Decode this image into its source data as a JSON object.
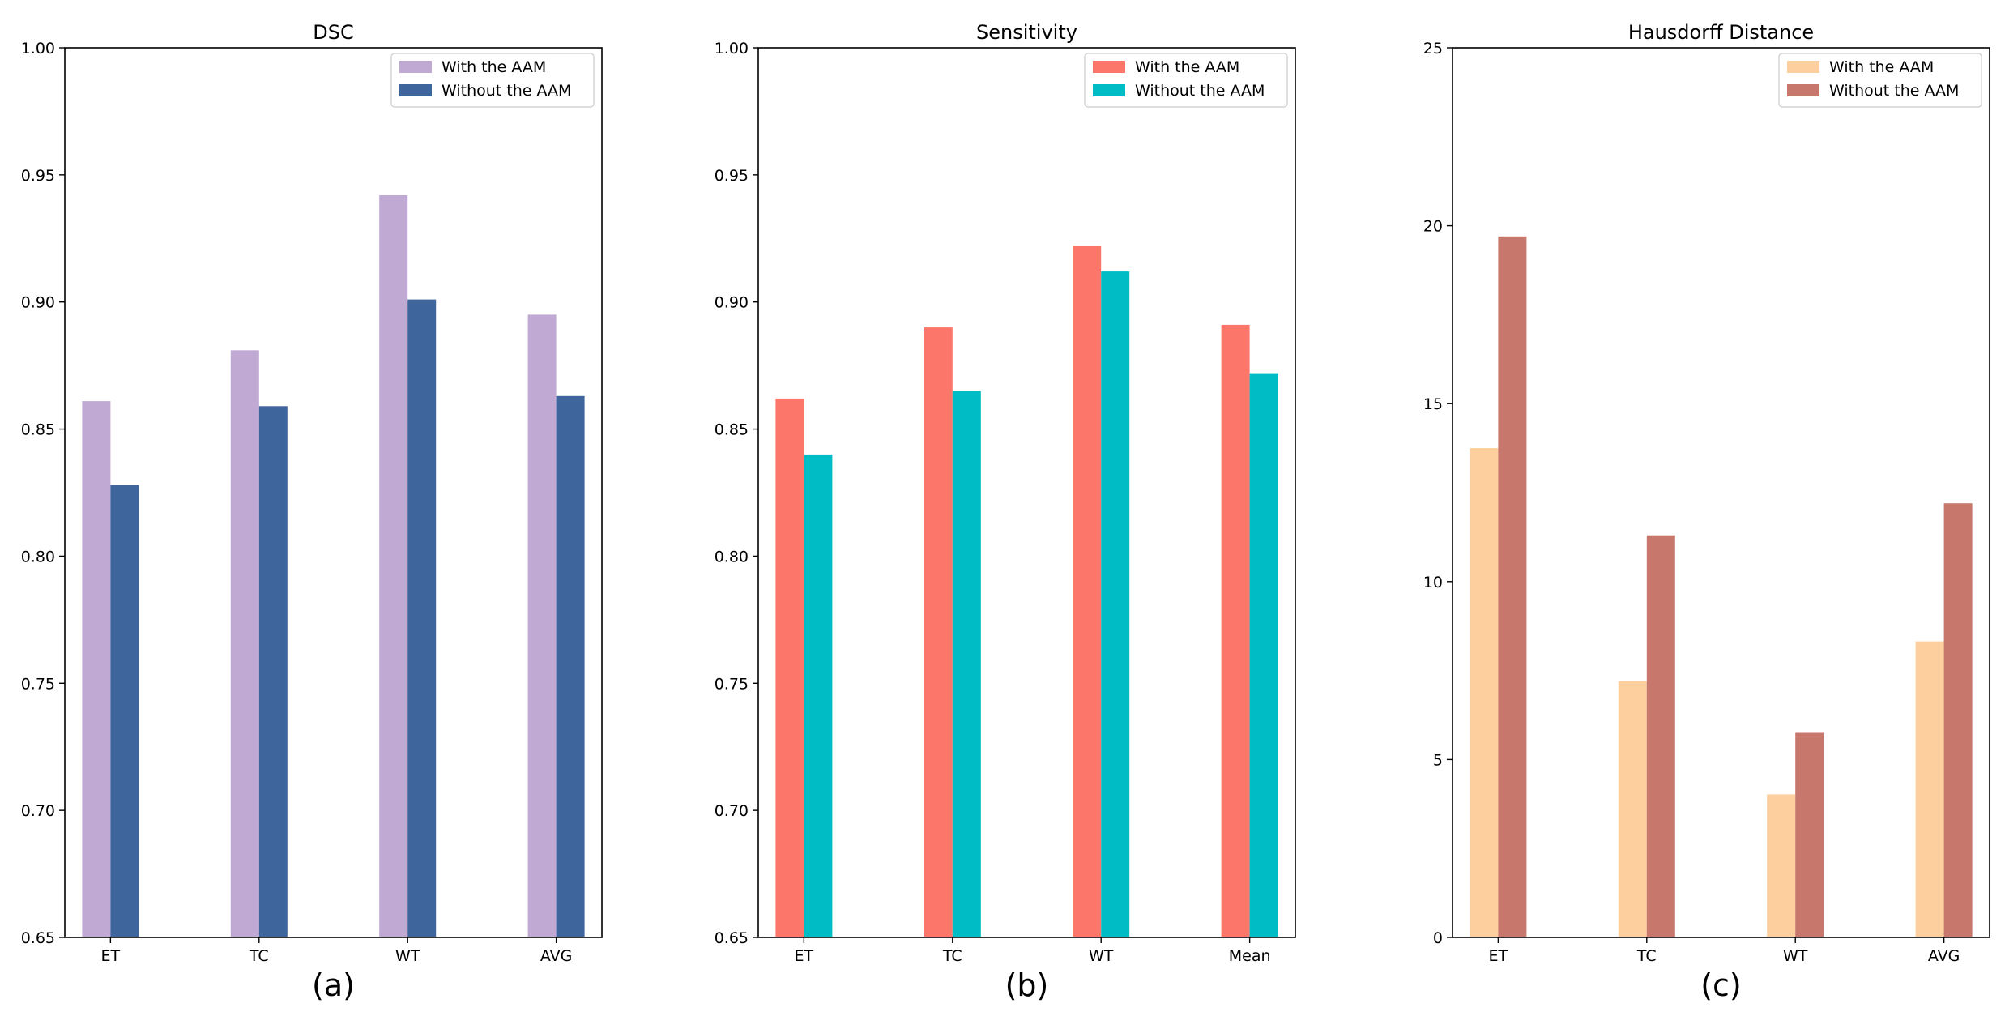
{
  "chart_data": [
    {
      "type": "bar",
      "title": "DSC",
      "panel_label": "(a)",
      "categories": [
        "ET",
        "TC",
        "WT",
        "AVG"
      ],
      "ylim": [
        0.65,
        1.0
      ],
      "yticks": [
        0.65,
        0.7,
        0.75,
        0.8,
        0.85,
        0.9,
        0.95,
        1.0
      ],
      "ytick_labels": [
        "0.65",
        "0.70",
        "0.75",
        "0.80",
        "0.85",
        "0.90",
        "0.95",
        "1.00"
      ],
      "grid": false,
      "legend_position": "top-right",
      "series": [
        {
          "name": "With the AAM",
          "color": "#c0aad4",
          "values": [
            0.861,
            0.881,
            0.942,
            0.895
          ]
        },
        {
          "name": "Without the AAM",
          "color": "#3f659d",
          "values": [
            0.828,
            0.859,
            0.901,
            0.863
          ]
        }
      ]
    },
    {
      "type": "bar",
      "title": "Sensitivity",
      "panel_label": "(b)",
      "categories": [
        "ET",
        "TC",
        "WT",
        "Mean"
      ],
      "ylim": [
        0.65,
        1.0
      ],
      "yticks": [
        0.65,
        0.7,
        0.75,
        0.8,
        0.85,
        0.9,
        0.95,
        1.0
      ],
      "ytick_labels": [
        "0.65",
        "0.70",
        "0.75",
        "0.80",
        "0.85",
        "0.90",
        "0.95",
        "1.00"
      ],
      "grid": false,
      "legend_position": "top-right",
      "series": [
        {
          "name": "With the AAM",
          "color": "#fc766a",
          "values": [
            0.862,
            0.89,
            0.922,
            0.891
          ]
        },
        {
          "name": "Without the AAM",
          "color": "#00bcc4",
          "values": [
            0.84,
            0.865,
            0.912,
            0.872
          ]
        }
      ]
    },
    {
      "type": "bar",
      "title": "Hausdorff Distance",
      "panel_label": "(c)",
      "categories": [
        "ET",
        "TC",
        "WT",
        "AVG"
      ],
      "ylim": [
        0,
        25
      ],
      "yticks": [
        0,
        5,
        10,
        15,
        20,
        25
      ],
      "ytick_labels": [
        "0",
        "5",
        "10",
        "15",
        "20",
        "25"
      ],
      "grid": false,
      "legend_position": "top-right",
      "series": [
        {
          "name": "With the AAM",
          "color": "#fdcf9e",
          "values": [
            13.75,
            7.2,
            4.02,
            8.32
          ]
        },
        {
          "name": "Without the AAM",
          "color": "#c8776c",
          "values": [
            19.7,
            11.3,
            5.75,
            12.2
          ]
        }
      ]
    }
  ]
}
